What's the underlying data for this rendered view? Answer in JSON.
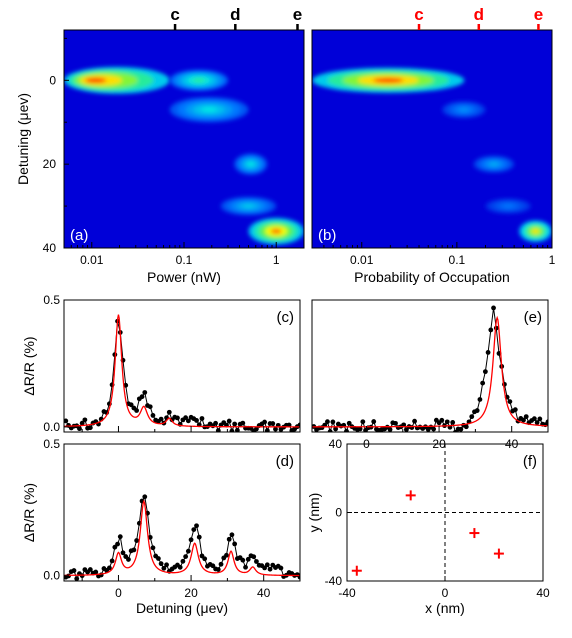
{
  "colors": {
    "map_bg": "#0000d8",
    "fit_line": "#ff0000",
    "data_points": "#000000",
    "markers": "#ff0000",
    "top_labels_b": "#ff0000"
  },
  "chart_data": [
    {
      "id": "a",
      "type": "heatmap",
      "panel_label": "(a)",
      "xlabel": "Power (nW)",
      "ylabel": "Detuning (μev)",
      "x_scale": "log",
      "xlim": [
        0.005,
        2
      ],
      "ylim": [
        40,
        -12
      ],
      "y_inverted": true,
      "x_ticks": [
        0.01,
        0.1,
        1
      ],
      "x_tick_labels": [
        "0.01",
        "0.1",
        "1"
      ],
      "y_ticks": [
        0,
        20,
        40
      ],
      "y_tick_labels": [
        "0",
        "20",
        "40"
      ],
      "top_markers": [
        {
          "label": "c",
          "x": 0.08
        },
        {
          "label": "d",
          "x": 0.36
        },
        {
          "label": "e",
          "x": 1.7
        }
      ],
      "blobs": [
        {
          "x0": 0.005,
          "x1": 0.07,
          "y": 0,
          "thick": 3.2,
          "i": 1.0
        },
        {
          "x0": 0.07,
          "x1": 0.3,
          "y": 0,
          "thick": 2.5,
          "i": 0.55
        },
        {
          "x0": 0.07,
          "x1": 0.5,
          "y": 7,
          "thick": 3,
          "i": 0.45
        },
        {
          "x0": 0.35,
          "x1": 0.8,
          "y": 20,
          "thick": 2.5,
          "i": 0.45
        },
        {
          "x0": 0.25,
          "x1": 1.0,
          "y": 30,
          "thick": 2.2,
          "i": 0.4
        },
        {
          "x0": 0.5,
          "x1": 2.0,
          "y": 36,
          "thick": 3.2,
          "i": 0.95
        }
      ]
    },
    {
      "id": "b",
      "type": "heatmap",
      "panel_label": "(b)",
      "xlabel": "Probability of Occupation",
      "x_scale": "log",
      "xlim": [
        0.003,
        1
      ],
      "ylim": [
        40,
        -12
      ],
      "y_inverted": true,
      "x_ticks": [
        0.01,
        0.1,
        1
      ],
      "x_tick_labels": [
        "0.01",
        "0.1",
        "1"
      ],
      "top_markers": [
        {
          "label": "c",
          "x": 0.04
        },
        {
          "label": "d",
          "x": 0.17
        },
        {
          "label": "e",
          "x": 0.72
        }
      ],
      "blobs": [
        {
          "x0": 0.003,
          "x1": 0.12,
          "y": 0,
          "thick": 3.0,
          "i": 1.0
        },
        {
          "x0": 0.07,
          "x1": 0.2,
          "y": 7,
          "thick": 2.0,
          "i": 0.3
        },
        {
          "x0": 0.15,
          "x1": 0.4,
          "y": 20,
          "thick": 2.0,
          "i": 0.35
        },
        {
          "x0": 0.2,
          "x1": 0.6,
          "y": 30,
          "thick": 1.8,
          "i": 0.25
        },
        {
          "x0": 0.45,
          "x1": 1.0,
          "y": 36,
          "thick": 2.6,
          "i": 0.85
        }
      ]
    },
    {
      "id": "c",
      "type": "line",
      "panel_label": "(c)",
      "ylabel": "ΔR/R (%)",
      "xlim": [
        -15,
        50
      ],
      "ylim": [
        -0.02,
        0.5
      ],
      "y_ticks": [
        0.0,
        0.5
      ],
      "y_tick_labels": [
        "0.0",
        "0.5"
      ],
      "peaks": [
        {
          "x": 0,
          "amp": 0.4,
          "w": 1.5
        },
        {
          "x": 7,
          "amp": 0.1,
          "w": 2.0
        },
        {
          "x": 14,
          "amp": 0.03,
          "w": 1.5
        }
      ],
      "fit_peaks": [
        {
          "x": 0,
          "amp": 0.44,
          "w": 1.1
        },
        {
          "x": 7,
          "amp": 0.07,
          "w": 1.2
        },
        {
          "x": 14,
          "amp": 0.03,
          "w": 1.0
        }
      ],
      "data_noise": 0.02,
      "extra_data_peaks": [
        {
          "x": 21,
          "amp": 0.03,
          "w": 2
        }
      ]
    },
    {
      "id": "d",
      "type": "line",
      "panel_label": "(d)",
      "ylabel": "ΔR/R (%)",
      "xlabel": "Detuning (μev)",
      "xlim": [
        -15,
        50
      ],
      "ylim": [
        -0.02,
        0.5
      ],
      "y_ticks": [
        0.0,
        0.5
      ],
      "y_tick_labels": [
        "0.0",
        "0.5"
      ],
      "x_ticks": [
        0,
        20,
        40
      ],
      "x_tick_labels": [
        "0",
        "20",
        "40"
      ],
      "peaks": [
        {
          "x": 0,
          "amp": 0.12,
          "w": 1.5
        },
        {
          "x": 7,
          "amp": 0.3,
          "w": 1.8
        },
        {
          "x": 21,
          "amp": 0.18,
          "w": 1.8
        },
        {
          "x": 31,
          "amp": 0.14,
          "w": 1.5
        },
        {
          "x": 37,
          "amp": 0.06,
          "w": 1.5
        },
        {
          "x": 43,
          "amp": 0.03,
          "w": 1.5
        }
      ],
      "fit_peaks": [
        {
          "x": 0,
          "amp": 0.08,
          "w": 1.0
        },
        {
          "x": 7,
          "amp": 0.28,
          "w": 1.2
        },
        {
          "x": 21,
          "amp": 0.12,
          "w": 1.2
        },
        {
          "x": 31,
          "amp": 0.09,
          "w": 1.0
        },
        {
          "x": 37,
          "amp": 0.03,
          "w": 1.0
        }
      ],
      "data_noise": 0.018
    },
    {
      "id": "e",
      "type": "line",
      "panel_label": "(e)",
      "xlim": [
        -15,
        50
      ],
      "ylim": [
        -0.02,
        0.5
      ],
      "x_ticks": [
        0,
        20,
        40
      ],
      "x_tick_labels": [
        "0",
        "20",
        "40"
      ],
      "peaks": [
        {
          "x": 35,
          "amp": 0.45,
          "w": 2.2
        }
      ],
      "fit_peaks": [
        {
          "x": 36,
          "amp": 0.43,
          "w": 1.4
        }
      ],
      "data_noise": 0.02,
      "dip": {
        "x": 26,
        "amp": -0.04
      }
    },
    {
      "id": "f",
      "type": "scatter",
      "panel_label": "(f)",
      "xlabel": "x (nm)",
      "ylabel": "y (nm)",
      "xlim": [
        -40,
        40
      ],
      "ylim": [
        -40,
        40
      ],
      "x_ticks": [
        -40,
        0,
        40
      ],
      "x_tick_labels": [
        "-40",
        "0",
        "40"
      ],
      "y_ticks": [
        -40,
        0,
        40
      ],
      "y_tick_labels": [
        "-40",
        "0",
        "40"
      ],
      "grid": "dashed lines at x=0 and y=0",
      "points": [
        {
          "x": -36,
          "y": -34
        },
        {
          "x": -14,
          "y": 10
        },
        {
          "x": 12,
          "y": -12
        },
        {
          "x": 22,
          "y": -24
        }
      ]
    }
  ]
}
